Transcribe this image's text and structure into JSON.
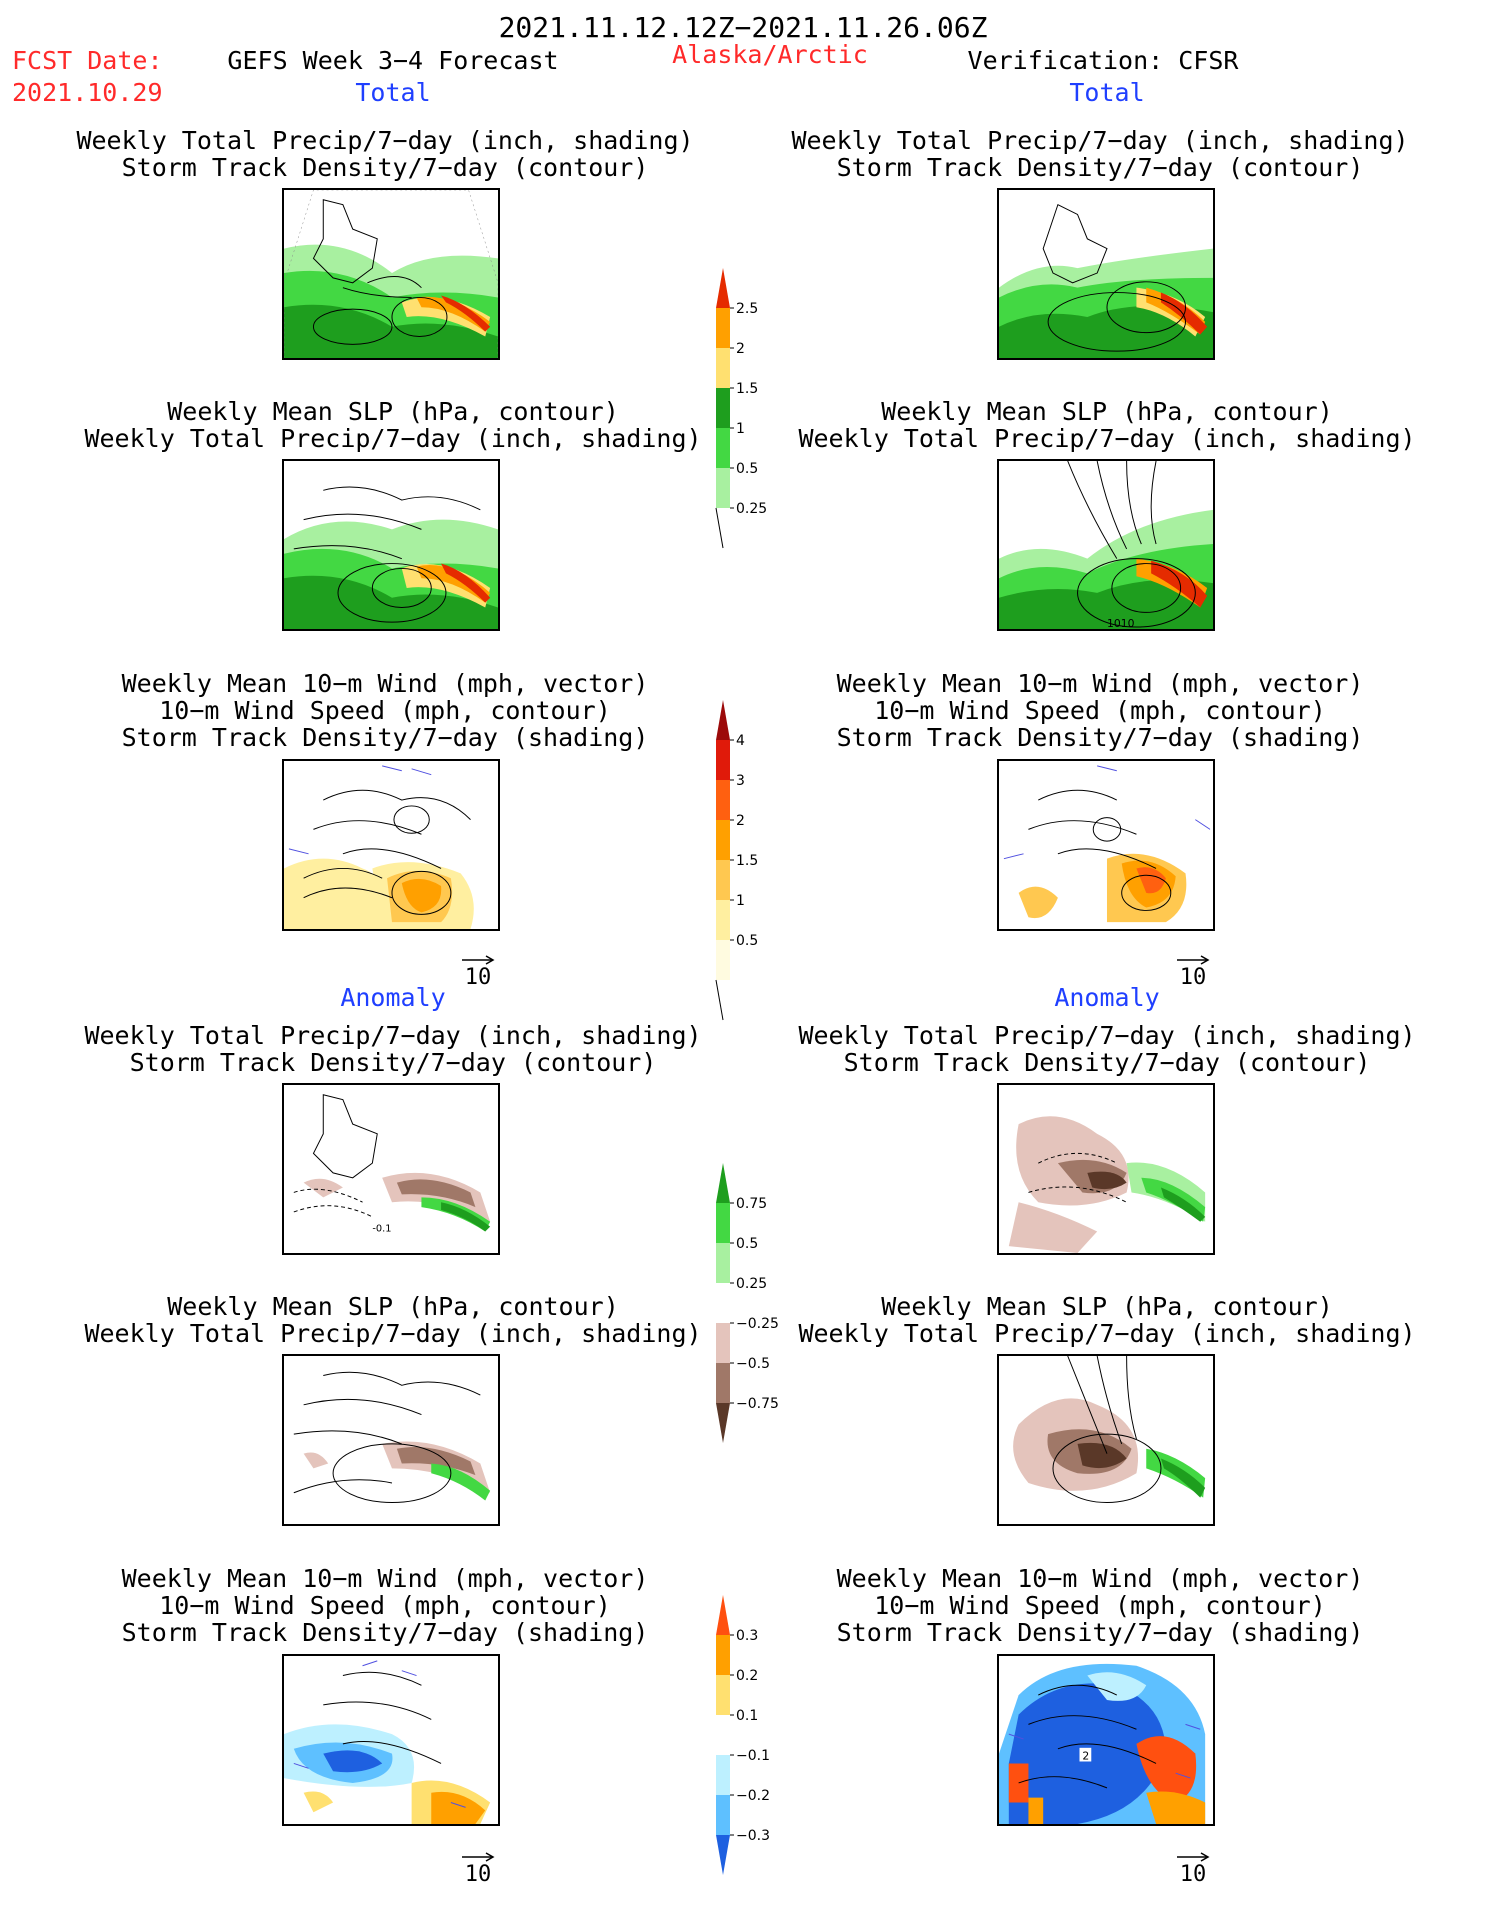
{
  "header": {
    "period": "2021.11.12.12Z−2021.11.26.06Z",
    "fcst_date_label": "FCST Date:",
    "fcst_date_value": "2021.10.29",
    "forecast_name": "GEFS Week 3−4 Forecast",
    "region": "Alaska/Arctic",
    "verification": "Verification: CFSR"
  },
  "sections": {
    "total_left": "Total",
    "total_right": "Total",
    "anomaly_left": "Anomaly",
    "anomaly_right": "Anomaly"
  },
  "panel_titles": {
    "precip_track": [
      "Weekly Total Precip/7−day (inch, shading)",
      "Storm Track Density/7−day (contour)"
    ],
    "slp_precip": [
      "Weekly Mean SLP (hPa, contour)",
      "Weekly Total Precip/7−day (inch, shading)"
    ],
    "wind_track": [
      "Weekly Mean 10−m Wind (mph, vector)",
      "10−m Wind Speed (mph, contour)",
      "Storm Track Density/7−day (shading)"
    ]
  },
  "vector_scale_label": "10",
  "map_labels": {
    "slp_label": "1010",
    "anomaly_contour_label": "-0.1",
    "wind_anom_label": "2"
  },
  "colorbars": {
    "total_precip": {
      "labels": [
        "2.5",
        "2",
        "1.5",
        "1",
        "0.5",
        "0.25"
      ],
      "colors": [
        "#e52b00",
        "#ffa000",
        "#ffe070",
        "#1e9e1e",
        "#43d843",
        "#a8f0a0"
      ]
    },
    "total_track": {
      "labels": [
        "4",
        "3",
        "2",
        "1.5",
        "1",
        "0.5"
      ],
      "colors": [
        "#9c0a0a",
        "#e01a0a",
        "#ff6010",
        "#ffa000",
        "#ffc850",
        "#ffefa0",
        "#fffbe0"
      ]
    },
    "anom_precip": {
      "labels": [
        "0.75",
        "0.5",
        "0.25",
        "−0.25",
        "−0.5",
        "−0.75"
      ],
      "colors": [
        "#1e9e1e",
        "#43d843",
        "#a8f0a0",
        "#ffffff",
        "#e4c4bc",
        "#a07868",
        "#5a3828"
      ]
    },
    "anom_track": {
      "labels": [
        "0.3",
        "0.2",
        "0.1",
        "−0.1",
        "−0.2",
        "−0.3"
      ],
      "colors": [
        "#ff5010",
        "#ffa000",
        "#ffe070",
        "#ffffff",
        "#bdf0ff",
        "#5ec0ff",
        "#1e60e0"
      ]
    }
  }
}
